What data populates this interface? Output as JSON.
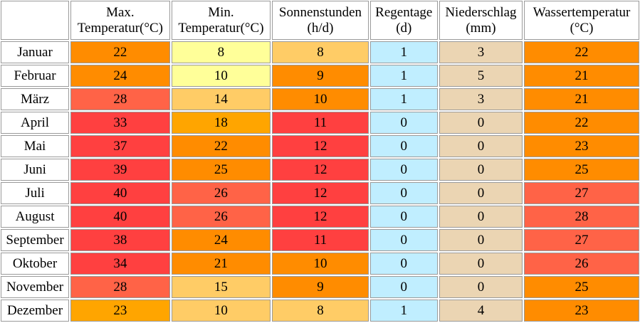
{
  "headers": [
    {
      "line1": "Max.",
      "line2": "Temperatur(°C)"
    },
    {
      "line1": "Min.",
      "line2": "Temperatur(°C)"
    },
    {
      "line1": "Sonnenstunden",
      "line2": "(h/d)"
    },
    {
      "line1": "Regentage",
      "line2": "(d)"
    },
    {
      "line1": "Niederschlag",
      "line2": "(mm)"
    },
    {
      "line1": "Wassertemperatur",
      "line2": "(°C)"
    }
  ],
  "rows": [
    {
      "month": "Januar",
      "values": [
        "22",
        "8",
        "8",
        "1",
        "3",
        "22"
      ],
      "colors": [
        "#ff8c00",
        "#ffff99",
        "#ffcc66",
        "#c0eeff",
        "#ebd5b3",
        "#ff8c00"
      ]
    },
    {
      "month": "Februar",
      "values": [
        "24",
        "10",
        "9",
        "1",
        "5",
        "21"
      ],
      "colors": [
        "#ff8c00",
        "#ffff99",
        "#ff8c00",
        "#c0eeff",
        "#ebd5b3",
        "#ff8c00"
      ]
    },
    {
      "month": "März",
      "values": [
        "28",
        "14",
        "10",
        "1",
        "3",
        "21"
      ],
      "colors": [
        "#ff6347",
        "#ffcc66",
        "#ff8c00",
        "#c0eeff",
        "#ebd5b3",
        "#ff8c00"
      ]
    },
    {
      "month": "April",
      "values": [
        "33",
        "18",
        "11",
        "0",
        "0",
        "22"
      ],
      "colors": [
        "#ff4040",
        "#ffa500",
        "#ff4040",
        "#c0eeff",
        "#ebd5b3",
        "#ff8c00"
      ]
    },
    {
      "month": "Mai",
      "values": [
        "37",
        "22",
        "12",
        "0",
        "0",
        "23"
      ],
      "colors": [
        "#ff4040",
        "#ff8c00",
        "#ff4040",
        "#c0eeff",
        "#ebd5b3",
        "#ff8c00"
      ]
    },
    {
      "month": "Juni",
      "values": [
        "39",
        "25",
        "12",
        "0",
        "0",
        "25"
      ],
      "colors": [
        "#ff4040",
        "#ff8c00",
        "#ff4040",
        "#c0eeff",
        "#ebd5b3",
        "#ff8c00"
      ]
    },
    {
      "month": "Juli",
      "values": [
        "40",
        "26",
        "12",
        "0",
        "0",
        "27"
      ],
      "colors": [
        "#ff4040",
        "#ff6347",
        "#ff4040",
        "#c0eeff",
        "#ebd5b3",
        "#ff6347"
      ]
    },
    {
      "month": "August",
      "values": [
        "40",
        "26",
        "12",
        "0",
        "0",
        "28"
      ],
      "colors": [
        "#ff4040",
        "#ff6347",
        "#ff4040",
        "#c0eeff",
        "#ebd5b3",
        "#ff6347"
      ]
    },
    {
      "month": "September",
      "values": [
        "38",
        "24",
        "11",
        "0",
        "0",
        "27"
      ],
      "colors": [
        "#ff4040",
        "#ff8c00",
        "#ff4040",
        "#c0eeff",
        "#ebd5b3",
        "#ff6347"
      ]
    },
    {
      "month": "Oktober",
      "values": [
        "34",
        "21",
        "10",
        "0",
        "0",
        "26"
      ],
      "colors": [
        "#ff4040",
        "#ff8c00",
        "#ff8c00",
        "#c0eeff",
        "#ebd5b3",
        "#ff6347"
      ]
    },
    {
      "month": "November",
      "values": [
        "28",
        "15",
        "9",
        "0",
        "0",
        "25"
      ],
      "colors": [
        "#ff6347",
        "#ffcc66",
        "#ff8c00",
        "#c0eeff",
        "#ebd5b3",
        "#ff8c00"
      ]
    },
    {
      "month": "Dezember",
      "values": [
        "23",
        "10",
        "8",
        "1",
        "4",
        "23"
      ],
      "colors": [
        "#ffa500",
        "#ffcc66",
        "#ffcc66",
        "#c0eeff",
        "#ebd5b3",
        "#ff8c00"
      ]
    }
  ]
}
